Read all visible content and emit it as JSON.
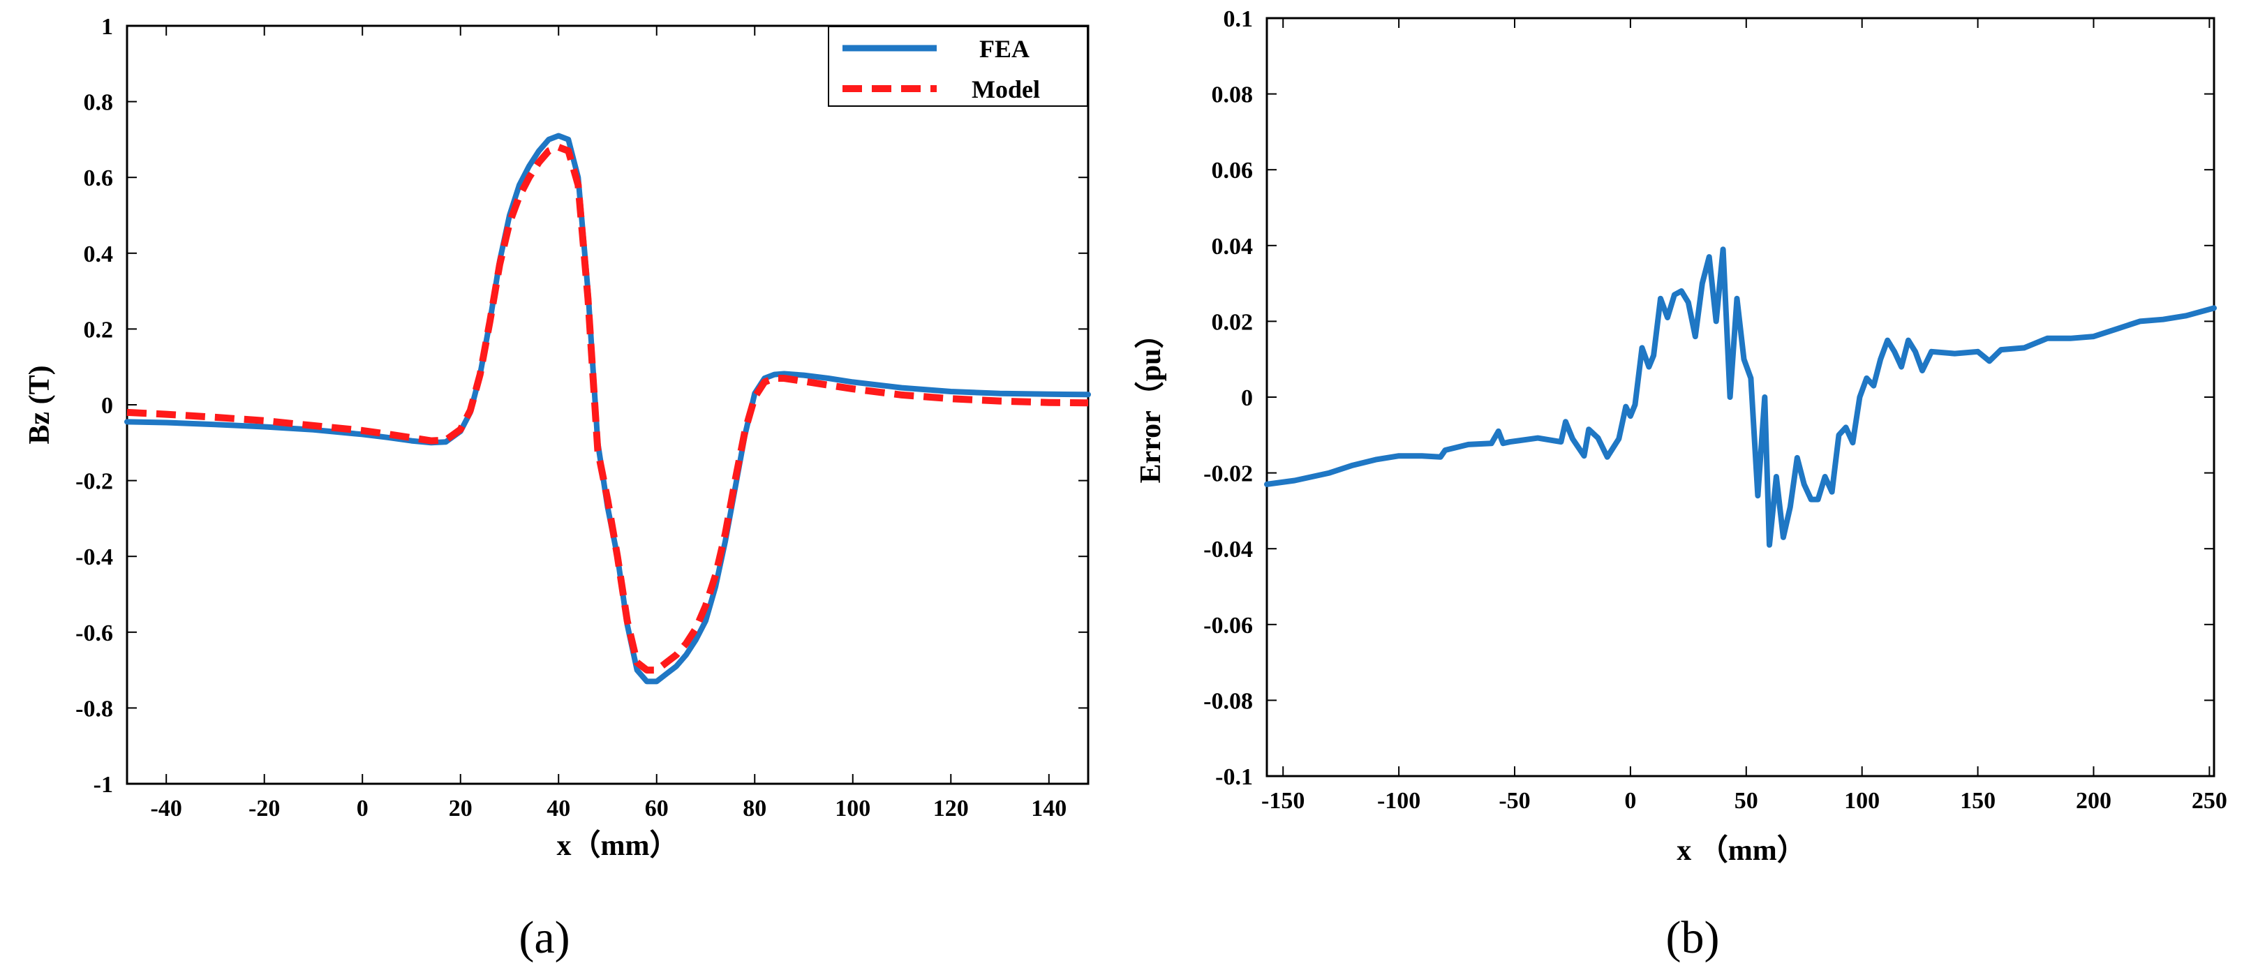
{
  "chart_data": [
    {
      "type": "line",
      "panel_label": "(a)",
      "xlabel": "x（mm）",
      "ylabel": "Bz (T)",
      "xlim": [
        -48,
        148
      ],
      "ylim": [
        -1,
        1
      ],
      "xticks": [
        -40,
        -20,
        0,
        20,
        40,
        60,
        80,
        100,
        120,
        140
      ],
      "yticks": [
        -1,
        -0.8,
        -0.6,
        -0.4,
        -0.2,
        0,
        0.2,
        0.4,
        0.6,
        0.8,
        1
      ],
      "xtick_labels": [
        "-40",
        "-20",
        "0",
        "20",
        "40",
        "60",
        "80",
        "100",
        "120",
        "140"
      ],
      "ytick_labels": [
        "-1",
        "-0.8",
        "-0.6",
        "-0.4",
        "-0.2",
        "0",
        "0.2",
        "0.4",
        "0.6",
        "0.8",
        "1"
      ],
      "legend_position": "top-right",
      "series": [
        {
          "name": "FEA",
          "color": "#1f77c4",
          "style": "solid",
          "x": [
            -48,
            -40,
            -30,
            -20,
            -10,
            0,
            5,
            10,
            14,
            17,
            20,
            22,
            24,
            26,
            28,
            30,
            32,
            34,
            36,
            38,
            40,
            42,
            44,
            46,
            48,
            50,
            52,
            54,
            56,
            58,
            60,
            62,
            64,
            66,
            68,
            70,
            72,
            74,
            76,
            78,
            80,
            82,
            84,
            86,
            90,
            95,
            100,
            110,
            120,
            130,
            140,
            148
          ],
          "y": [
            -0.045,
            -0.047,
            -0.052,
            -0.058,
            -0.066,
            -0.078,
            -0.086,
            -0.095,
            -0.1,
            -0.098,
            -0.07,
            -0.02,
            0.08,
            0.22,
            0.38,
            0.5,
            0.58,
            0.63,
            0.67,
            0.7,
            0.71,
            0.7,
            0.6,
            0.3,
            -0.1,
            -0.27,
            -0.4,
            -0.58,
            -0.7,
            -0.73,
            -0.73,
            -0.71,
            -0.69,
            -0.66,
            -0.62,
            -0.57,
            -0.48,
            -0.36,
            -0.22,
            -0.08,
            0.03,
            0.07,
            0.08,
            0.082,
            0.078,
            0.07,
            0.06,
            0.045,
            0.035,
            0.03,
            0.028,
            0.027
          ]
        },
        {
          "name": "Model",
          "color": "#ff1a1a",
          "style": "dashed",
          "x": [
            -48,
            -40,
            -30,
            -20,
            -10,
            0,
            5,
            10,
            14,
            17,
            20,
            22,
            24,
            26,
            28,
            30,
            32,
            34,
            36,
            38,
            40,
            42,
            44,
            46,
            48,
            50,
            52,
            54,
            56,
            58,
            60,
            62,
            64,
            66,
            68,
            70,
            72,
            74,
            76,
            78,
            80,
            82,
            84,
            86,
            90,
            95,
            100,
            110,
            120,
            130,
            140,
            148
          ],
          "y": [
            -0.02,
            -0.025,
            -0.033,
            -0.042,
            -0.055,
            -0.068,
            -0.077,
            -0.087,
            -0.095,
            -0.093,
            -0.065,
            -0.015,
            0.08,
            0.22,
            0.37,
            0.48,
            0.55,
            0.6,
            0.64,
            0.67,
            0.68,
            0.67,
            0.58,
            0.28,
            -0.12,
            -0.25,
            -0.4,
            -0.57,
            -0.68,
            -0.7,
            -0.7,
            -0.68,
            -0.66,
            -0.63,
            -0.59,
            -0.53,
            -0.45,
            -0.34,
            -0.2,
            -0.07,
            0.02,
            0.06,
            0.07,
            0.07,
            0.062,
            0.052,
            0.042,
            0.026,
            0.016,
            0.01,
            0.006,
            0.005
          ]
        }
      ]
    },
    {
      "type": "line",
      "panel_label": "(b)",
      "xlabel": "x （mm）",
      "ylabel": "Error（pu）",
      "xlim": [
        -157,
        252
      ],
      "ylim": [
        -0.1,
        0.1
      ],
      "xticks": [
        -150,
        -100,
        -50,
        0,
        50,
        100,
        150,
        200,
        250
      ],
      "yticks": [
        -0.1,
        -0.08,
        -0.06,
        -0.04,
        -0.02,
        0,
        0.02,
        0.04,
        0.06,
        0.08,
        0.1
      ],
      "xtick_labels": [
        "-150",
        "-100",
        "-50",
        "0",
        "50",
        "100",
        "150",
        "200",
        "250"
      ],
      "ytick_labels": [
        "-0.1",
        "-0.08",
        "-0.06",
        "-0.04",
        "-0.02",
        "0",
        "0.02",
        "0.04",
        "0.06",
        "0.08",
        "0.1"
      ],
      "series": [
        {
          "name": "Error",
          "color": "#1f77c4",
          "style": "solid",
          "x": [
            -157,
            -145,
            -130,
            -120,
            -110,
            -100,
            -90,
            -82,
            -80,
            -70,
            -60,
            -57,
            -55,
            -52,
            -40,
            -30,
            -28,
            -25,
            -20,
            -18,
            -14,
            -10,
            -5,
            -2,
            0,
            2,
            5,
            8,
            10,
            13,
            16,
            19,
            22,
            25,
            28,
            31,
            34,
            37,
            40,
            43,
            46,
            49,
            52,
            55,
            58,
            60,
            63,
            66,
            69,
            72,
            75,
            78,
            81,
            84,
            87,
            90,
            93,
            96,
            99,
            102,
            105,
            108,
            111,
            114,
            117,
            120,
            123,
            126,
            130,
            140,
            150,
            155,
            160,
            170,
            180,
            190,
            200,
            210,
            220,
            230,
            240,
            252
          ],
          "y": [
            -0.023,
            -0.022,
            -0.02,
            -0.018,
            -0.0165,
            -0.0155,
            -0.0155,
            -0.0158,
            -0.014,
            -0.0125,
            -0.0122,
            -0.009,
            -0.0122,
            -0.0118,
            -0.0108,
            -0.0118,
            -0.0065,
            -0.011,
            -0.0155,
            -0.0085,
            -0.0108,
            -0.0158,
            -0.011,
            -0.0025,
            -0.005,
            -0.002,
            0.013,
            0.008,
            0.011,
            0.026,
            0.021,
            0.027,
            0.028,
            0.025,
            0.016,
            0.03,
            0.037,
            0.02,
            0.039,
            0.0,
            0.026,
            0.01,
            0.005,
            -0.026,
            0.0,
            -0.039,
            -0.021,
            -0.037,
            -0.029,
            -0.016,
            -0.023,
            -0.027,
            -0.027,
            -0.021,
            -0.025,
            -0.01,
            -0.008,
            -0.012,
            0.0,
            0.005,
            0.003,
            0.01,
            0.015,
            0.012,
            0.008,
            0.015,
            0.012,
            0.007,
            0.012,
            0.0115,
            0.012,
            0.0095,
            0.0125,
            0.013,
            0.0155,
            0.0155,
            0.016,
            0.018,
            0.02,
            0.0205,
            0.0215,
            0.0235
          ]
        }
      ]
    }
  ]
}
